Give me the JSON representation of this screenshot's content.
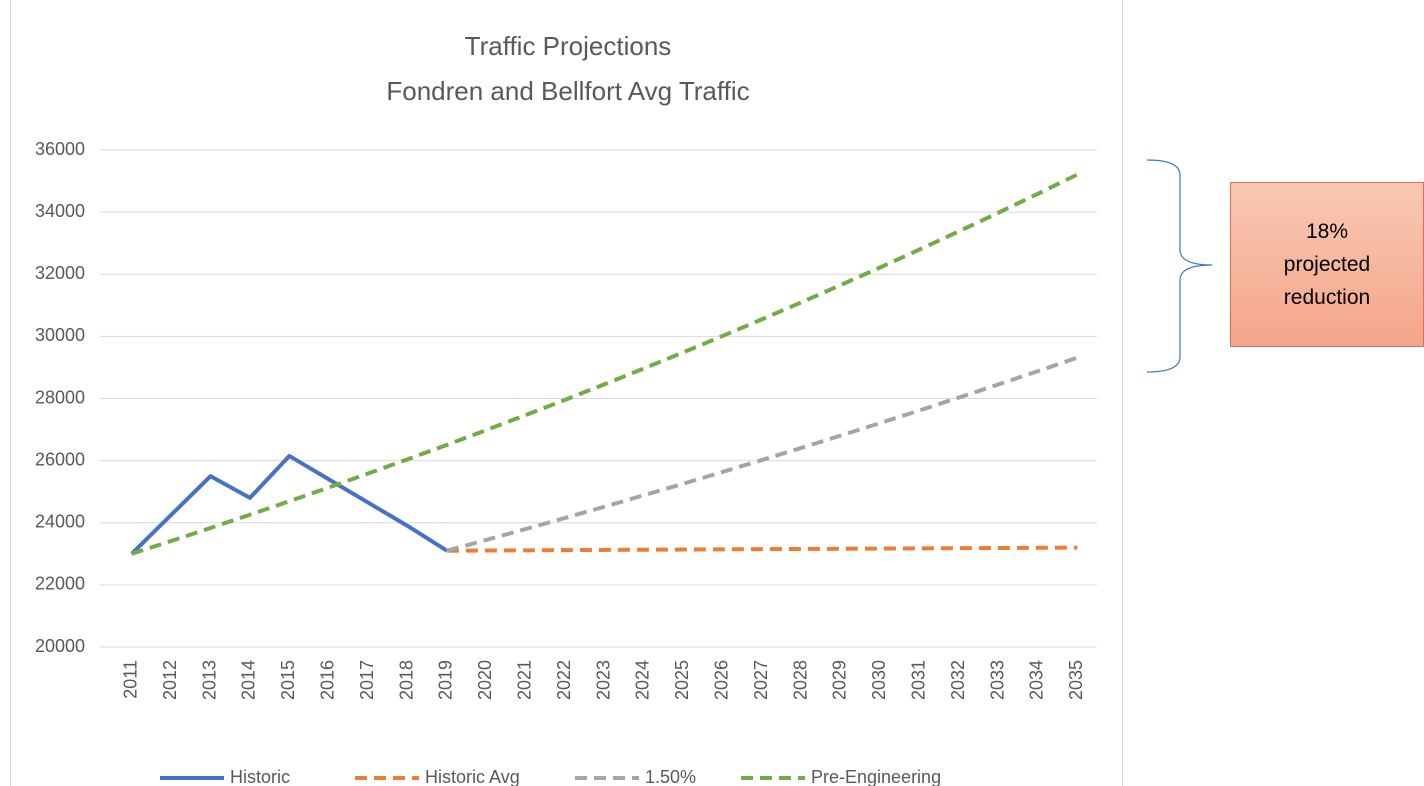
{
  "chart_data": {
    "type": "line",
    "title": [
      "Traffic Projections",
      "Fondren and Bellfort Avg Traffic"
    ],
    "categories": [
      "2011",
      "2012",
      "2013",
      "2014",
      "2015",
      "2016",
      "2017",
      "2018",
      "2019",
      "2020",
      "2021",
      "2022",
      "2023",
      "2024",
      "2025",
      "2026",
      "2027",
      "2028",
      "2029",
      "2030",
      "2031",
      "2032",
      "2033",
      "2034",
      "2035"
    ],
    "series": [
      {
        "name": "Historic",
        "color": "#4472c4",
        "dashed": false,
        "values": [
          23000,
          24250,
          25500,
          24800,
          26150,
          25400,
          24650,
          23900,
          23100,
          null,
          null,
          null,
          null,
          null,
          null,
          null,
          null,
          null,
          null,
          null,
          null,
          null,
          null,
          null,
          null
        ]
      },
      {
        "name": "Historic Avg",
        "color": "#ed7d31",
        "dashed": true,
        "values": [
          null,
          null,
          null,
          null,
          null,
          null,
          null,
          null,
          23100,
          23106,
          23112,
          23119,
          23125,
          23131,
          23137,
          23144,
          23150,
          23156,
          23162,
          23169,
          23175,
          23181,
          23187,
          23194,
          23200
        ]
      },
      {
        "name": "1.50%",
        "color": "#a5a5a5",
        "dashed": true,
        "values": [
          null,
          null,
          null,
          null,
          null,
          null,
          null,
          null,
          23100,
          23447,
          23798,
          24155,
          24517,
          24885,
          25258,
          25637,
          26022,
          26412,
          26808,
          27211,
          27619,
          28033,
          28454,
          28880,
          29314
        ]
      },
      {
        "name": "Pre-Engineering",
        "color": "#70ad47",
        "dashed": true,
        "values": [
          23000,
          23412,
          23831,
          24258,
          24692,
          25134,
          25584,
          26042,
          26508,
          26983,
          27466,
          27957,
          28458,
          28967,
          29486,
          30014,
          30551,
          31098,
          31654,
          32221,
          32798,
          33385,
          33983,
          34591,
          35210
        ]
      }
    ],
    "ylim": [
      20000,
      36000
    ],
    "yticks": [
      20000,
      22000,
      24000,
      26000,
      28000,
      30000,
      32000,
      34000,
      36000
    ],
    "grid": true,
    "legend": "bottom",
    "annotation": [
      "18%",
      "projected",
      "reduction"
    ]
  }
}
